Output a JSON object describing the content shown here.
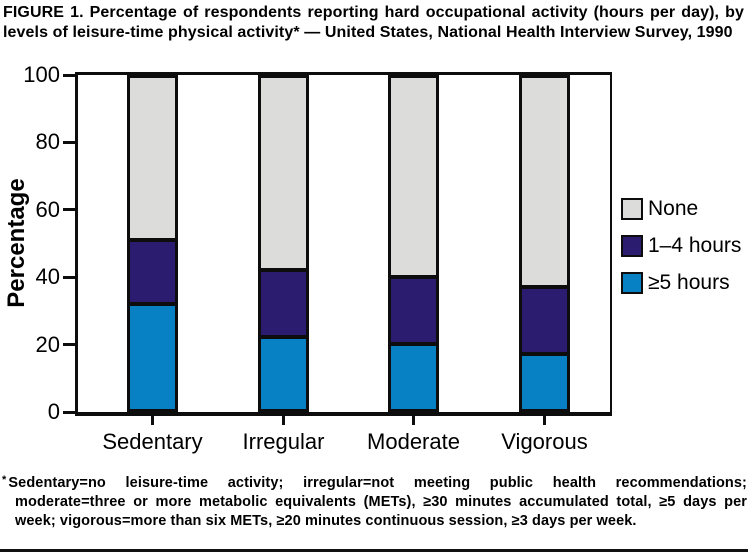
{
  "figure": {
    "title": "FIGURE 1. Percentage of respondents reporting hard occupational activity (hours per day), by levels of leisure-time physical activity* — United States, National Health Interview Survey, 1990",
    "footnote_marker": "*",
    "footnote": "Sedentary=no leisure-time activity; irregular=not meeting public health recommendations; moderate=three or more metabolic equivalents (METs), ≥30 minutes accumulated total, ≥5 days per week; vigorous=more than six METs, ≥20 minutes continuous session, ≥3 days per week."
  },
  "chart_data": {
    "type": "bar",
    "stacked": true,
    "categories": [
      "Sedentary",
      "Irregular",
      "Moderate",
      "Vigorous"
    ],
    "series": [
      {
        "name": "None",
        "color": "#dcdcda",
        "values": [
          49,
          58,
          60,
          63
        ]
      },
      {
        "name": "1–4 hours",
        "color": "#2b1c70",
        "values": [
          19,
          20,
          20,
          20
        ]
      },
      {
        "name": "≥5 hours",
        "color": "#0880c4",
        "values": [
          32,
          22,
          20,
          17
        ]
      }
    ],
    "stack_order_note": "series listed top-to-bottom of each bar; each bar totals 100",
    "ylabel": "Percentage",
    "xlabel": "",
    "ylim": [
      0,
      100
    ],
    "yticks": [
      0,
      20,
      40,
      60,
      80,
      100
    ],
    "legend_position": "right",
    "grid": false,
    "axis_color": "#0d0d0d"
  }
}
